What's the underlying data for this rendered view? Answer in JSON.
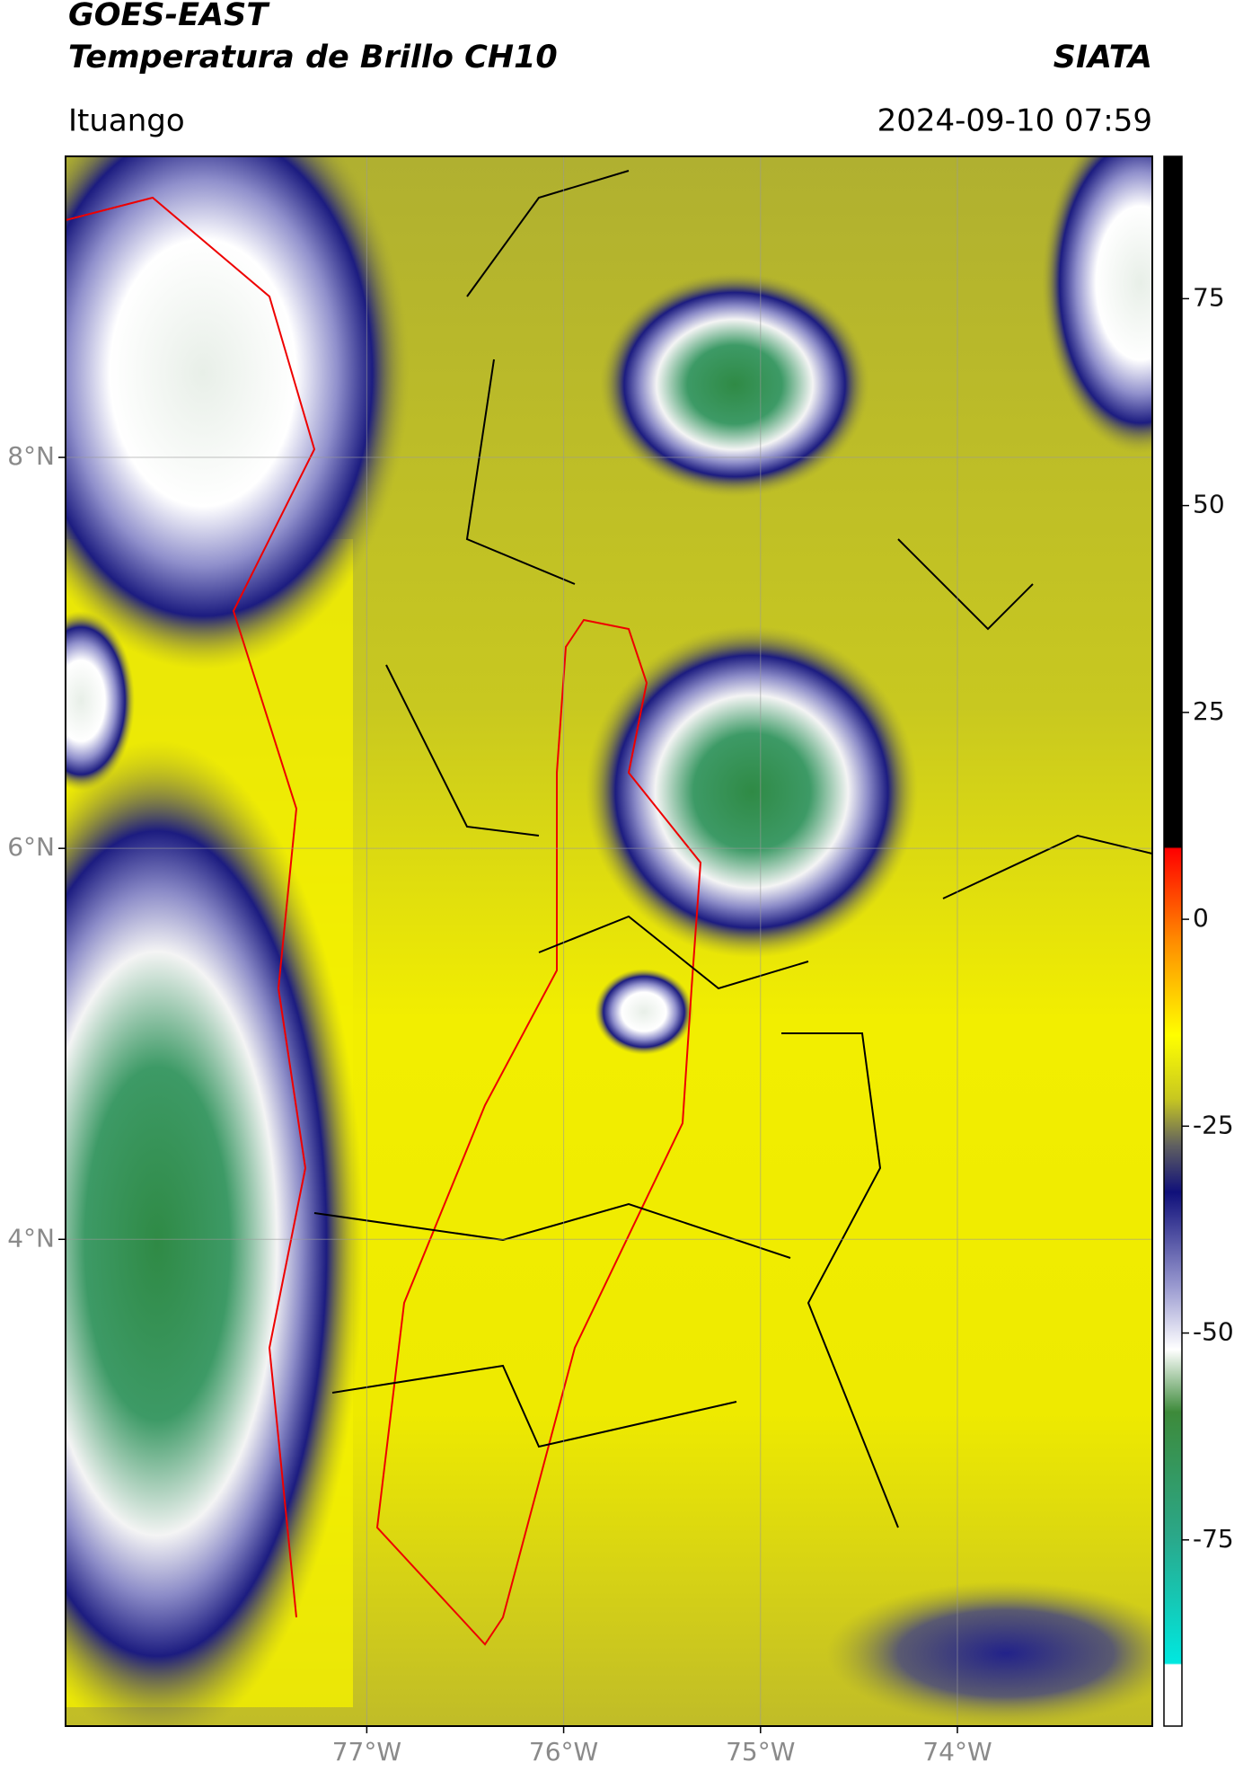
{
  "header": {
    "title": "GOES-EAST",
    "subtitle": "Temperatura de Brillo CH10",
    "brand": "SIATA",
    "location": "Ituango",
    "datetime": "2024-09-10 07:59"
  },
  "map": {
    "lon_lim": [
      -78.53,
      -73.01
    ],
    "lat_lim": [
      1.51,
      9.54
    ],
    "lon_ticks": [
      {
        "value": -77,
        "label": "77°W"
      },
      {
        "value": -76,
        "label": "76°W"
      },
      {
        "value": -75,
        "label": "75°W"
      },
      {
        "value": -74,
        "label": "74°W"
      }
    ],
    "lat_ticks": [
      {
        "value": 8,
        "label": "8°N"
      },
      {
        "value": 6,
        "label": "6°N"
      },
      {
        "value": 4,
        "label": "4°N"
      }
    ],
    "grid": true
  },
  "colorbar": {
    "lim": [
      -97.5,
      92.2
    ],
    "ticks": [
      -75,
      -50,
      -25,
      0,
      25,
      50,
      75
    ]
  }
}
